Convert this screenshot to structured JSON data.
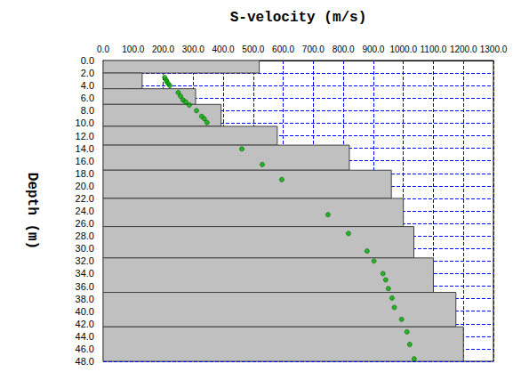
{
  "chart_data": {
    "type": "bar",
    "orientation": "horizontal",
    "x_label": "S-velocity (m/s)",
    "y_label": "Depth (m)",
    "xlim": [
      0,
      1300
    ],
    "xticks": [
      {
        "value": 0,
        "label": "0.0"
      },
      {
        "value": 100,
        "label": "100.0"
      },
      {
        "value": 200,
        "label": "200.0"
      },
      {
        "value": 300,
        "label": "300.0"
      },
      {
        "value": 400,
        "label": "400.0"
      },
      {
        "value": 500,
        "label": "500.0"
      },
      {
        "value": 600,
        "label": "600.0"
      },
      {
        "value": 700,
        "label": "700.0"
      },
      {
        "value": 800,
        "label": "800.0"
      },
      {
        "value": 900,
        "label": "900.0"
      },
      {
        "value": 1000,
        "label": "1000.0"
      },
      {
        "value": 1100,
        "label": "1100.0"
      },
      {
        "value": 1200,
        "label": "1200.0"
      },
      {
        "value": 1300,
        "label": "1300.0"
      }
    ],
    "ylim": [
      0,
      48
    ],
    "yticks": [
      {
        "value": 0,
        "label": "0.0"
      },
      {
        "value": 2,
        "label": "2.0"
      },
      {
        "value": 4,
        "label": "4.0"
      },
      {
        "value": 6,
        "label": "6.0"
      },
      {
        "value": 8,
        "label": "8.0"
      },
      {
        "value": 10,
        "label": "10.0"
      },
      {
        "value": 12,
        "label": "12.0"
      },
      {
        "value": 14,
        "label": "14.0"
      },
      {
        "value": 16,
        "label": "16.0"
      },
      {
        "value": 18,
        "label": "18.0"
      },
      {
        "value": 20,
        "label": "20.0"
      },
      {
        "value": 22,
        "label": "22.0"
      },
      {
        "value": 24,
        "label": "24.0"
      },
      {
        "value": 26,
        "label": "26.0"
      },
      {
        "value": 28,
        "label": "28.0"
      },
      {
        "value": 30,
        "label": "30.0"
      },
      {
        "value": 32,
        "label": "32.0"
      },
      {
        "value": 34,
        "label": "34.0"
      },
      {
        "value": 36,
        "label": "36.0"
      },
      {
        "value": 38,
        "label": "38.0"
      },
      {
        "value": 40,
        "label": "40.0"
      },
      {
        "value": 42,
        "label": "42.0"
      },
      {
        "value": 44,
        "label": "44.0"
      },
      {
        "value": 46,
        "label": "46.0"
      },
      {
        "value": 48,
        "label": "48.0"
      }
    ],
    "grid": true,
    "layers": {
      "depth_top": [
        0,
        2,
        4.5,
        7,
        10.5,
        13.5,
        17.5,
        22,
        26.5,
        31.5,
        37,
        42.5
      ],
      "depth_bottom": [
        2,
        4.5,
        7,
        10.5,
        13.5,
        17.5,
        22,
        26.5,
        31.5,
        37,
        42.5,
        48
      ],
      "values": [
        520,
        130,
        308,
        393,
        580,
        820,
        960,
        1000,
        1035,
        1100,
        1175,
        1200
      ],
      "color": "#c0c0c0"
    },
    "points": {
      "type": "scatter",
      "marker": "circle",
      "color": "#00b000",
      "x": [
        205,
        210,
        212,
        217,
        222,
        250,
        258,
        266,
        275,
        287,
        311,
        328,
        337,
        346,
        462,
        530,
        595,
        749,
        817,
        879,
        902,
        932,
        941,
        950,
        962,
        970,
        994,
        1012,
        1021,
        1036
      ],
      "y": [
        2.7,
        3.1,
        3.4,
        3.7,
        4.0,
        5.1,
        5.7,
        6.3,
        6.6,
        7.1,
        8.0,
        8.9,
        9.3,
        9.9,
        14.1,
        16.6,
        19.0,
        24.6,
        27.6,
        30.4,
        32.0,
        34.0,
        35.0,
        36.4,
        37.9,
        39.4,
        41.3,
        43.3,
        45.3,
        47.6
      ]
    }
  }
}
